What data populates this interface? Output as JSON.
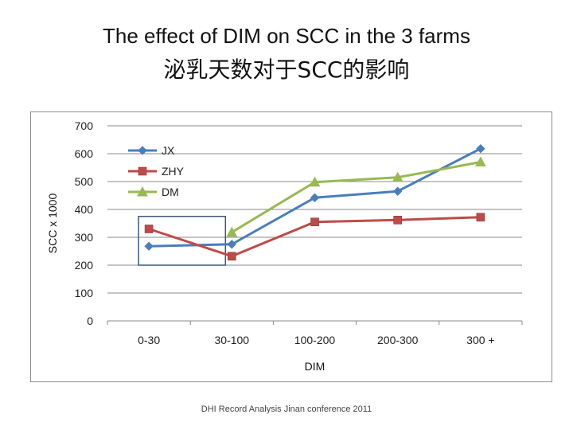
{
  "slide": {
    "title_en": "The effect of DIM on SCC in the 3 farms",
    "title_zh": "泌乳天数对于SCC的影响",
    "footer": "DHI Record Analysis Jinan conference 2011"
  },
  "chart_data": {
    "type": "line",
    "categories": [
      "0-30",
      "30-100",
      "100-200",
      "200-300",
      "300 +"
    ],
    "series": [
      {
        "name": "JX",
        "values": [
          268,
          275,
          442,
          465,
          618
        ],
        "color": "#4a7ebb",
        "marker": "diamond"
      },
      {
        "name": "ZHY",
        "values": [
          330,
          232,
          355,
          362,
          372
        ],
        "color": "#be4b48",
        "marker": "square"
      },
      {
        "name": "DM",
        "values": [
          null,
          318,
          498,
          515,
          570
        ],
        "color": "#98b954",
        "marker": "triangle"
      }
    ],
    "yticks": [
      0,
      100,
      200,
      300,
      400,
      500,
      600,
      700
    ],
    "ylim": [
      0,
      700
    ],
    "xlabel": "DIM",
    "ylabel": "SCC x 1000",
    "grid": true,
    "legend": "top-left",
    "highlight_box": {
      "categories": [
        "0-30",
        "30-100"
      ],
      "range": [
        200,
        375
      ],
      "color": "#3b5a7a"
    }
  }
}
